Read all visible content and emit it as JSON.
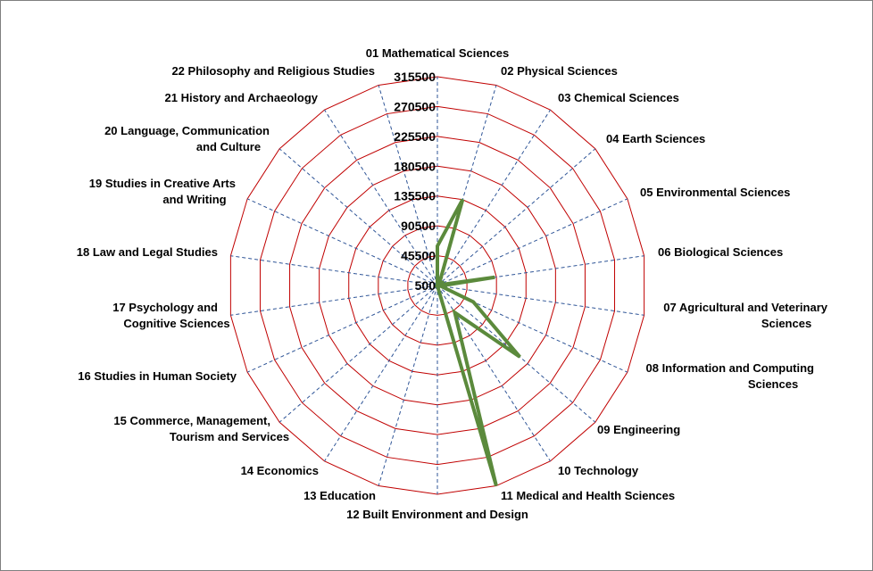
{
  "chart_data": {
    "type": "radar",
    "title": "",
    "categories": [
      "01 Mathematical Sciences",
      "02 Physical Sciences",
      "03 Chemical Sciences",
      "04 Earth Sciences",
      "05 Environmental Sciences",
      "06 Biological Sciences",
      "07 Agricultural and Veterinary Sciences",
      "08 Information and Computing Sciences",
      "09 Engineering",
      "10 Technology",
      "11 Medical and Health Sciences",
      "12 Built Environment and Design",
      "13 Education",
      "14 Economics",
      "15 Commerce, Management, Tourism and Services",
      "16 Studies in Human Society",
      "17 Psychology and Cognitive Sciences",
      "18 Law and Legal Studies",
      "19 Studies in Creative Arts and Writing",
      "20 Language, Communication and Culture",
      "21 History and Archaeology",
      "22 Philosophy and Religious Studies"
    ],
    "ticks": [
      "500",
      "45500",
      "90500",
      "135500",
      "180500",
      "225500",
      "270500",
      "315500"
    ],
    "rlim": [
      500,
      315500
    ],
    "series": [
      {
        "name": "",
        "values": [
          60000,
          136000,
          7000,
          8000,
          2000,
          88000,
          5000,
          60000,
          165000,
          49000,
          315500,
          1000,
          1000,
          500,
          1000,
          500,
          1000,
          500,
          500,
          500,
          500,
          500
        ]
      }
    ],
    "colors": {
      "series": "#5b8a3c",
      "grid": "#c00000",
      "spokes": "#2f5597"
    },
    "grid": true,
    "legend": "none"
  }
}
